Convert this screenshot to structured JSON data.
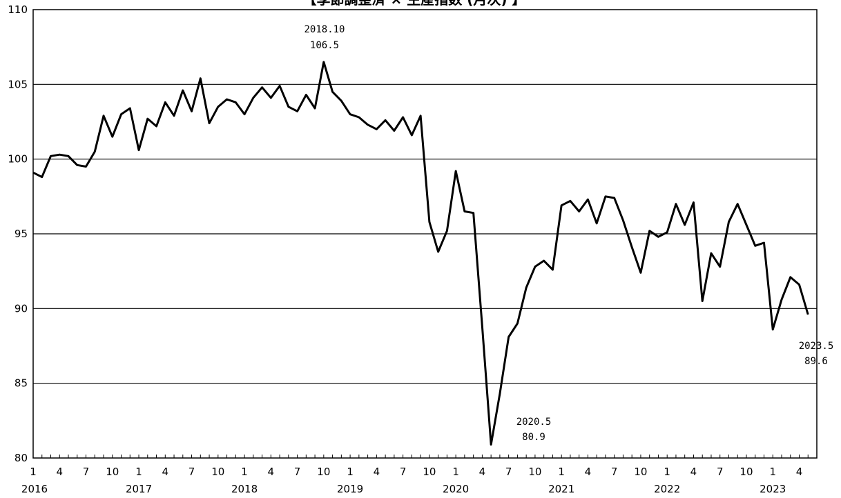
{
  "chart_data": {
    "type": "line",
    "title": "【季節調整済 × 生産指数 (月次) 】",
    "ylim": [
      80,
      110
    ],
    "yticks": [
      80,
      85,
      90,
      95,
      100,
      105,
      110
    ],
    "grid": true,
    "x_month_labels": [
      "1",
      "4",
      "7",
      "10"
    ],
    "years": [
      "2016",
      "2017",
      "2018",
      "2019",
      "2020",
      "2021",
      "2022",
      "2023"
    ],
    "series": [
      {
        "values": [
          99.1,
          98.8,
          100.2,
          100.3,
          100.2,
          99.6,
          99.5,
          100.5,
          102.9,
          101.5,
          103.0,
          103.4,
          100.6,
          102.7,
          102.2,
          103.8,
          102.9,
          104.6,
          103.2,
          105.4,
          102.4,
          103.5,
          104.0,
          103.8,
          103.0,
          104.1,
          104.8,
          104.1,
          104.9,
          103.5,
          103.2,
          104.3,
          103.4,
          106.5,
          104.5,
          103.9,
          103.0,
          102.8,
          102.3,
          102.0,
          102.6,
          101.9,
          102.8,
          101.6,
          102.9,
          95.8,
          93.8,
          95.2,
          99.2,
          96.5,
          96.4,
          88.8,
          80.9,
          84.3,
          88.1,
          89.0,
          91.4,
          92.8,
          93.2,
          92.6,
          96.9,
          97.2,
          96.5,
          97.3,
          95.7,
          97.5,
          97.4,
          95.9,
          94.1,
          92.4,
          95.2,
          94.8,
          95.1,
          97.0,
          95.6,
          97.1,
          90.5,
          93.7,
          92.8,
          95.8,
          97.0,
          95.6,
          94.2,
          94.4,
          88.6,
          90.6,
          92.1,
          91.6,
          89.6
        ]
      }
    ],
    "annotations": [
      {
        "line1": "2018.10",
        "line2": "106.5"
      },
      {
        "line1": "2020.5",
        "line2": "80.9"
      },
      {
        "line1": "2023.5",
        "line2": "89.6"
      }
    ]
  }
}
